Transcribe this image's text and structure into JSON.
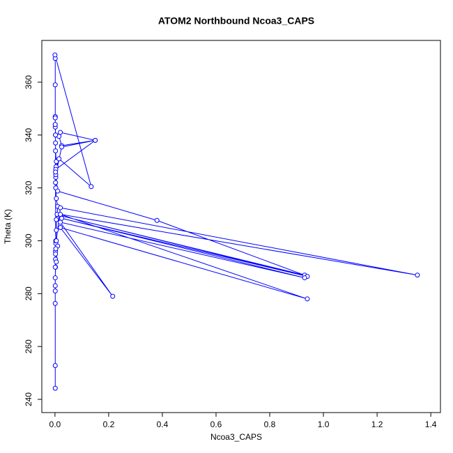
{
  "chart_data": {
    "type": "line",
    "markers": true,
    "title": "ATOM2 Northbound Ncoa3_CAPS",
    "x_label": "Ncoa3_CAPS",
    "y_label": "Theta (K)",
    "color": "#0000ff",
    "x": [
      0.001,
      0.001,
      0.001,
      0.001,
      0.001,
      0.001,
      0.002,
      0.002,
      0.002,
      0.003,
      0.003,
      0.005,
      0.005,
      0.008,
      0.01,
      0.005,
      0.003,
      0.003,
      0.004,
      0.005,
      0.002,
      0.002,
      0.002,
      0.001,
      0.001,
      0.001,
      0.001,
      0.0,
      0.135,
      0.015,
      0.003,
      0.15,
      0.02,
      0.015,
      0.025,
      0.15,
      0.025,
      0.003,
      0.01,
      0.38,
      0.93,
      0.02,
      0.94,
      0.025,
      0.93,
      0.02,
      0.215,
      0.02,
      0.94,
      0.02,
      1.35,
      0.02,
      0.005,
      0.002,
      0.01,
      0.005,
      0.001,
      0.003,
      0.002,
      0.002,
      0.002,
      0.001,
      0.001
    ],
    "values": [
      244.2,
      252.8,
      276.3,
      281,
      283,
      286,
      290,
      293,
      296,
      299,
      300,
      304,
      308,
      310,
      313,
      316,
      320,
      324,
      328,
      330,
      334,
      337,
      340,
      343,
      347,
      359,
      369,
      370.3,
      320.5,
      331,
      327,
      338,
      341,
      339.5,
      336,
      338,
      335.5,
      325,
      318.8,
      307.7,
      287,
      309.5,
      286.5,
      308.5,
      286,
      307,
      279,
      305,
      278,
      310,
      287,
      312.5,
      300,
      295,
      298,
      292,
      290,
      297,
      322,
      326,
      340,
      344,
      346.5
    ],
    "xlim": [
      -0.049,
      1.436
    ],
    "ylim": [
      235,
      375.8
    ],
    "xticks": [
      {
        "value": 0,
        "label": "0.0"
      },
      {
        "value": 0.2,
        "label": "0.2"
      },
      {
        "value": 0.4,
        "label": "0.4"
      },
      {
        "value": 0.6,
        "label": "0.6"
      },
      {
        "value": 0.8,
        "label": "0.8"
      },
      {
        "value": 1.0,
        "label": "1.0"
      },
      {
        "value": 1.2,
        "label": "1.2"
      },
      {
        "value": 1.4,
        "label": "1.4"
      }
    ],
    "yticks": [
      240,
      260,
      280,
      300,
      320,
      340,
      360
    ]
  }
}
